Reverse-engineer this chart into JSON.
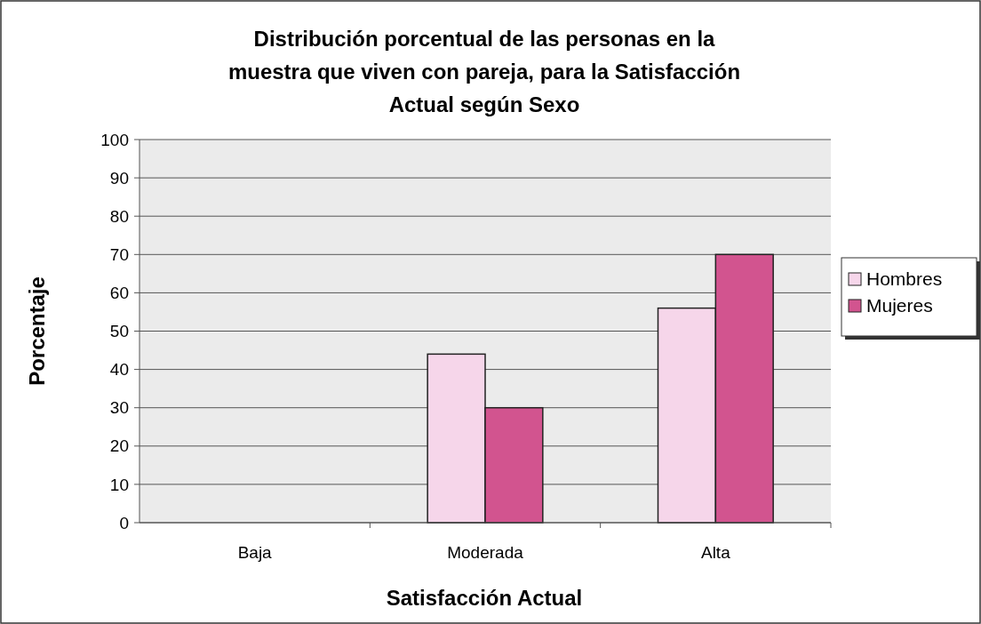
{
  "chart_data": {
    "type": "bar",
    "title": "Distribución porcentual de las personas en la muestra que viven con pareja, para la Satisfacción Actual según Sexo",
    "xlabel": "Satisfacción Actual",
    "ylabel": "Porcentaje",
    "categories": [
      "Baja",
      "Moderada",
      "Alta"
    ],
    "series": [
      {
        "name": "Hombres",
        "color": "#f6d6ea",
        "values": [
          0,
          44,
          56
        ]
      },
      {
        "name": "Mujeres",
        "color": "#d2548f",
        "values": [
          0,
          30,
          70
        ]
      }
    ],
    "ylim": [
      0,
      100
    ],
    "yticks": [
      0,
      10,
      20,
      30,
      40,
      50,
      60,
      70,
      80,
      90,
      100
    ],
    "grid": "y",
    "legend": "right"
  }
}
